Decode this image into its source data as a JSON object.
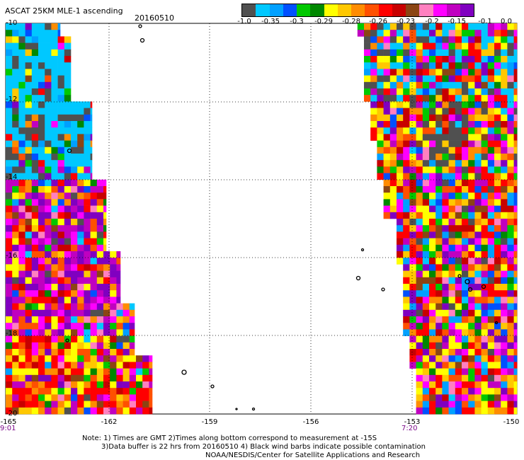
{
  "title": "ASCAT 25KM MLE-1 ascending",
  "date": "20160510",
  "colorbar": {
    "colors": [
      "#505050",
      "#00c8ff",
      "#00a0ff",
      "#0050ff",
      "#00c800",
      "#008800",
      "#ffff00",
      "#ffc800",
      "#ff8c00",
      "#ff5000",
      "#ff0000",
      "#c80000",
      "#8b4513",
      "#ff80c0",
      "#ff00ff",
      "#c000c0",
      "#8000c0"
    ],
    "labels": [
      "-1.0",
      "-0.35",
      "-0.3",
      "-0.29",
      "-0.28",
      "-0.26",
      "-0.23",
      "-0.2",
      "-0.15",
      "-0.1",
      "0.0"
    ]
  },
  "axes": {
    "lat_labels": [
      "-10",
      "-12",
      "-14",
      "-16",
      "-18",
      "-20"
    ],
    "lon_labels": [
      "-165",
      "-162",
      "-159",
      "-156",
      "-153",
      "-150"
    ]
  },
  "times": {
    "left": "9:01",
    "right": "7:20"
  },
  "notes": {
    "line1": "Note: 1) Times are GMT 2)Times along bottom correspond to measurement at -15S",
    "line2": "3)Data buffer is 22 hrs from 20160510 4) Black wind barbs indicate possible contamination",
    "line3": "NOAA/NESDIS/Center for Satellite Applications and Research"
  }
}
